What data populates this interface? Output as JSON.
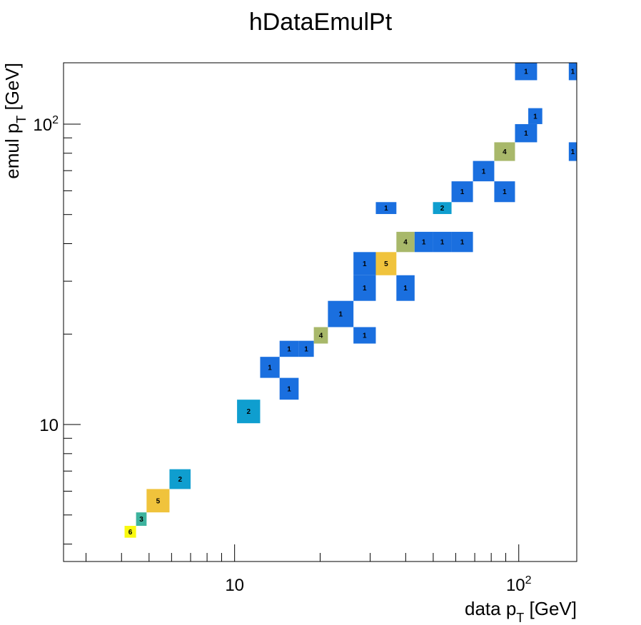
{
  "chart_data": {
    "type": "heatmap",
    "title": "hDataEmulPt",
    "xlabel_main": "data p",
    "xlabel_sub": "T",
    "xlabel_unit": " [GeV]",
    "ylabel_main": "emul p",
    "ylabel_sub": "T",
    "ylabel_unit": " [GeV]",
    "x_scale": "log",
    "y_scale": "log",
    "xlim": [
      2.5,
      160
    ],
    "ylim": [
      3.5,
      160
    ],
    "x_tick_labels": [
      {
        "value": 10,
        "base": "10",
        "exp": ""
      },
      {
        "value": 100,
        "base": "10",
        "exp": "2"
      }
    ],
    "y_tick_labels": [
      {
        "value": 10,
        "base": "10",
        "exp": ""
      },
      {
        "value": 100,
        "base": "10",
        "exp": "2"
      }
    ],
    "grid": false,
    "legend": "none",
    "color_scale": [
      "#1a6fdf",
      "#0f9ecf",
      "#3db39e",
      "#a8b86a",
      "#f0c33c",
      "#f9f90f"
    ],
    "cells": [
      {
        "x": [
          4.1,
          4.5
        ],
        "y": [
          4.2,
          4.6
        ],
        "value": 6
      },
      {
        "x": [
          4.5,
          4.9
        ],
        "y": [
          4.6,
          5.1
        ],
        "value": 3
      },
      {
        "x": [
          4.9,
          5.9
        ],
        "y": [
          5.1,
          6.1
        ],
        "value": 5
      },
      {
        "x": [
          5.9,
          7.0
        ],
        "y": [
          6.1,
          7.1
        ],
        "value": 2
      },
      {
        "x": [
          10.2,
          12.3
        ],
        "y": [
          10.1,
          12.1
        ],
        "value": 2
      },
      {
        "x": [
          14.4,
          16.8
        ],
        "y": [
          12.1,
          14.3
        ],
        "value": 1
      },
      {
        "x": [
          12.3,
          14.4
        ],
        "y": [
          14.3,
          16.8
        ],
        "value": 1
      },
      {
        "x": [
          14.4,
          16.8
        ],
        "y": [
          16.8,
          19.0
        ],
        "value": 1
      },
      {
        "x": [
          16.8,
          19.0
        ],
        "y": [
          16.8,
          19.0
        ],
        "value": 1
      },
      {
        "x": [
          19.0,
          21.3
        ],
        "y": [
          18.6,
          21.1
        ],
        "value": 4
      },
      {
        "x": [
          21.3,
          26.2
        ],
        "y": [
          21.1,
          25.8
        ],
        "value": 1
      },
      {
        "x": [
          26.2,
          31.4
        ],
        "y": [
          18.6,
          21.1
        ],
        "value": 1
      },
      {
        "x": [
          26.2,
          31.4
        ],
        "y": [
          25.8,
          31.4
        ],
        "value": 1
      },
      {
        "x": [
          26.2,
          31.4
        ],
        "y": [
          31.4,
          37.5
        ],
        "value": 1
      },
      {
        "x": [
          31.4,
          37.1
        ],
        "y": [
          31.4,
          37.5
        ],
        "value": 5
      },
      {
        "x": [
          37.1,
          43.0
        ],
        "y": [
          25.8,
          31.4
        ],
        "value": 1
      },
      {
        "x": [
          37.1,
          43.0
        ],
        "y": [
          37.5,
          43.8
        ],
        "value": 4
      },
      {
        "x": [
          43.0,
          49.9
        ],
        "y": [
          37.5,
          43.8
        ],
        "value": 1
      },
      {
        "x": [
          49.9,
          58.0
        ],
        "y": [
          37.5,
          43.8
        ],
        "value": 1
      },
      {
        "x": [
          58.0,
          69.0
        ],
        "y": [
          37.5,
          43.8
        ],
        "value": 1
      },
      {
        "x": [
          31.4,
          37.1
        ],
        "y": [
          50.2,
          55.0
        ],
        "value": 1
      },
      {
        "x": [
          49.9,
          58.0
        ],
        "y": [
          50.2,
          55.0
        ],
        "value": 2
      },
      {
        "x": [
          58.0,
          69.0
        ],
        "y": [
          55.0,
          64.5
        ],
        "value": 1
      },
      {
        "x": [
          69.0,
          82.0
        ],
        "y": [
          64.5,
          75.4
        ],
        "value": 1
      },
      {
        "x": [
          82.0,
          97.0
        ],
        "y": [
          55.0,
          64.5
        ],
        "value": 1
      },
      {
        "x": [
          82.0,
          97.0
        ],
        "y": [
          75.4,
          87.0
        ],
        "value": 4
      },
      {
        "x": [
          97.0,
          116.0
        ],
        "y": [
          87.0,
          100.0
        ],
        "value": 1
      },
      {
        "x": [
          108.0,
          121.0
        ],
        "y": [
          100.0,
          113.0
        ],
        "value": 1
      },
      {
        "x": [
          97.0,
          116.0
        ],
        "y": [
          140.0,
          160.0
        ],
        "value": 1
      },
      {
        "x": [
          150.0,
          160.0
        ],
        "y": [
          75.4,
          87.0
        ],
        "value": 1
      },
      {
        "x": [
          150.0,
          160.0
        ],
        "y": [
          140.0,
          160.0
        ],
        "value": 1
      }
    ]
  }
}
